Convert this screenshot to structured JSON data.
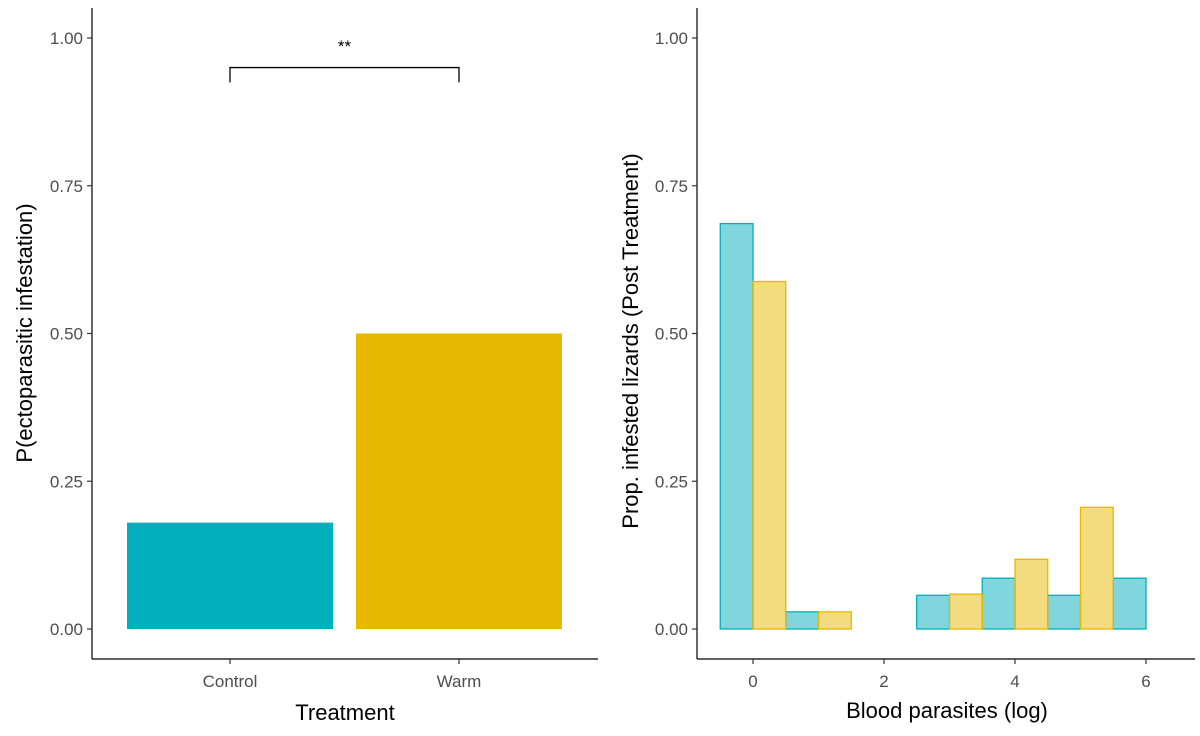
{
  "chart_data": [
    {
      "type": "bar",
      "categories": [
        "Control",
        "Warm"
      ],
      "values": [
        0.18,
        0.5
      ],
      "colors": [
        "#00AFBB",
        "#E7B800"
      ],
      "xlabel": "Treatment",
      "ylabel": "P(ectoparasitic infestation)",
      "ylim": [
        0,
        1
      ],
      "yticks": [
        "0.00",
        "0.25",
        "0.50",
        "0.75",
        "1.00"
      ],
      "annotations": [
        {
          "text": "**",
          "between": [
            "Control",
            "Warm"
          ]
        }
      ],
      "grid": false
    },
    {
      "type": "bar",
      "xlabel": "Blood parasites (log)",
      "ylabel": "Prop. infested lizards (Post Treatment)",
      "xlim": [
        -0.5,
        6.5
      ],
      "ylim": [
        0,
        1
      ],
      "xticks": [
        "0",
        "2",
        "4",
        "6"
      ],
      "yticks": [
        "0.00",
        "0.25",
        "0.50",
        "0.75",
        "1.00"
      ],
      "bin_width": 0.5,
      "grid": false,
      "series": [
        {
          "color": "#00AFBB",
          "bins": [
            {
              "x0": -0.5,
              "x1": 0,
              "value": 0.686
            },
            {
              "x0": 0.5,
              "x1": 1,
              "value": 0.029
            },
            {
              "x0": 1.5,
              "x1": 2,
              "value": 0
            },
            {
              "x0": 2.5,
              "x1": 3,
              "value": 0.057
            },
            {
              "x0": 3.5,
              "x1": 4,
              "value": 0.086
            },
            {
              "x0": 4.5,
              "x1": 5,
              "value": 0.057
            },
            {
              "x0": 5.5,
              "x1": 6,
              "value": 0.086
            }
          ]
        },
        {
          "color": "#E7B800",
          "bins": [
            {
              "x0": 0,
              "x1": 0.5,
              "value": 0.588
            },
            {
              "x0": 1,
              "x1": 1.5,
              "value": 0.029
            },
            {
              "x0": 2,
              "x1": 2.5,
              "value": 0
            },
            {
              "x0": 3,
              "x1": 3.5,
              "value": 0.059
            },
            {
              "x0": 4,
              "x1": 4.5,
              "value": 0.118
            },
            {
              "x0": 5,
              "x1": 5.5,
              "value": 0.206
            },
            {
              "x0": 6,
              "x1": 6.5,
              "value": 0
            }
          ]
        }
      ]
    }
  ]
}
